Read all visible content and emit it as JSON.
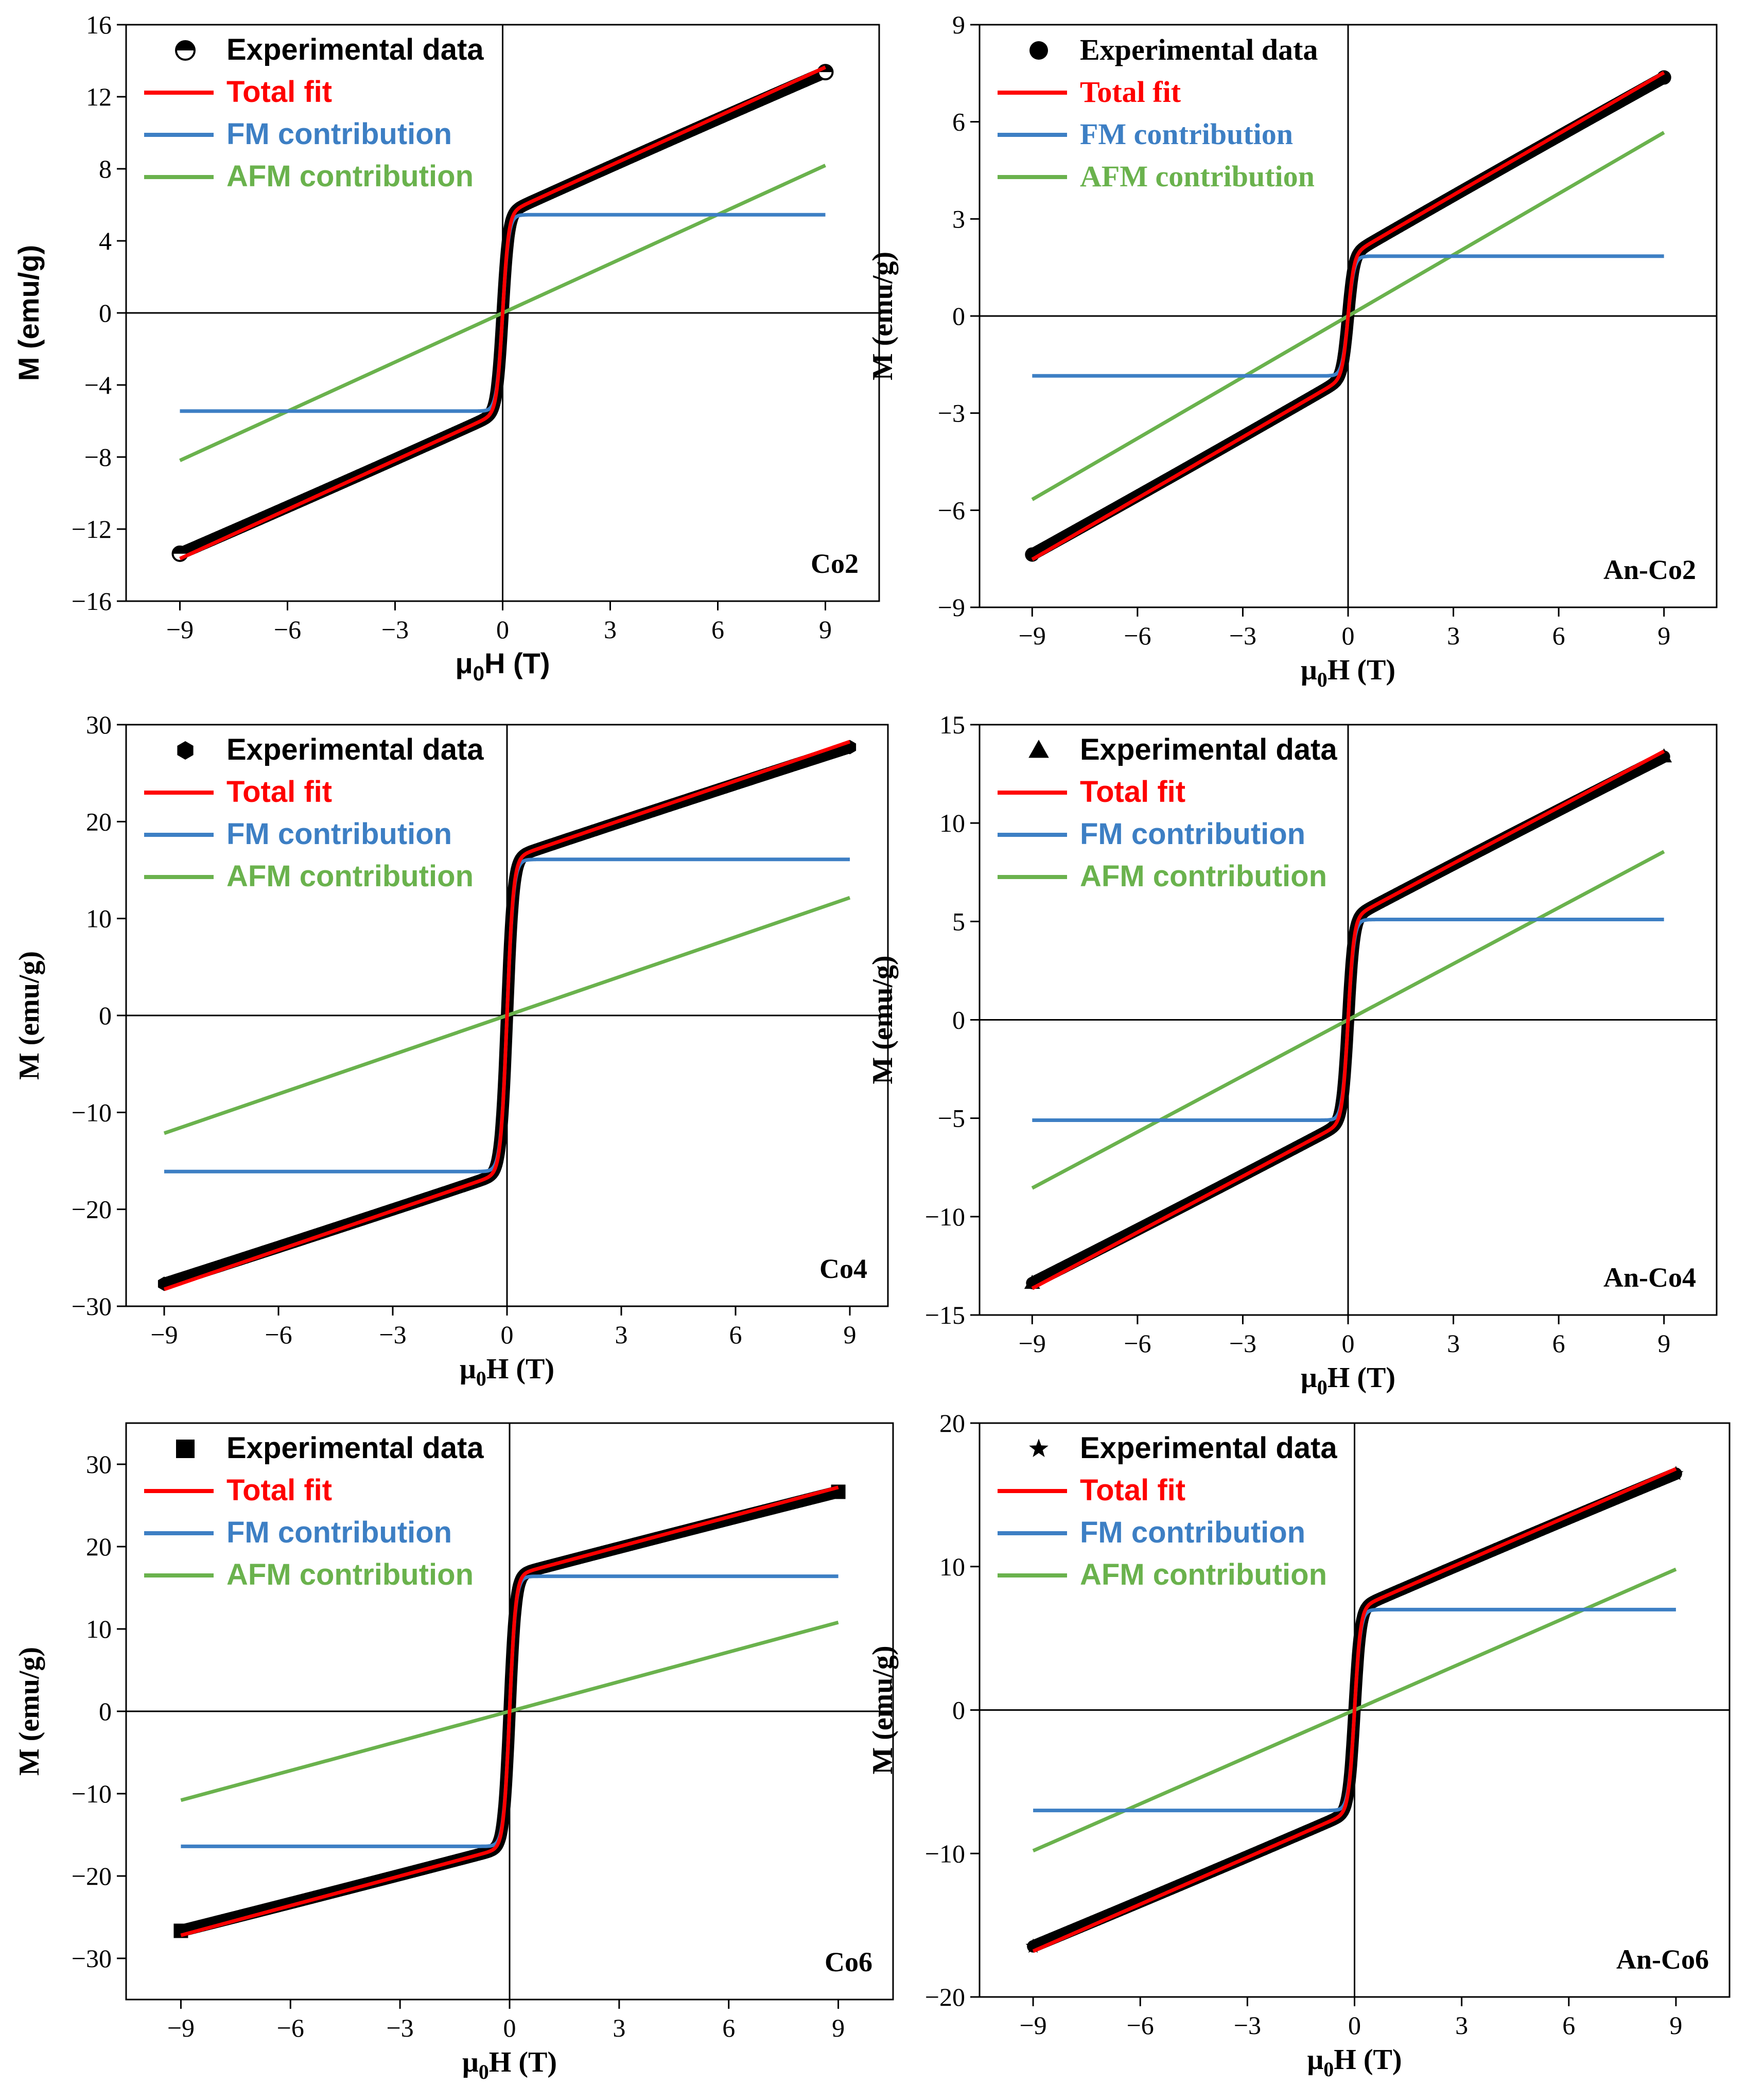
{
  "colors": {
    "experimental": "#000000",
    "total_fit": "#ff0000",
    "fm": "#3d7fc4",
    "afm": "#6ab24d"
  },
  "chart_data": [
    {
      "type": "line",
      "sample": "Co2",
      "xlabel_mu": "μ",
      "xlabel_sub": "0",
      "xlabel_rest": "H (T)",
      "ylabel": "M (emu/g)",
      "xlim": [
        -10.5,
        10.5
      ],
      "ylim": [
        -16,
        16
      ],
      "xticks": [
        "-9",
        "-6",
        "-3",
        "0",
        "3",
        "6",
        "9"
      ],
      "yticks": [
        "16",
        "12",
        "8",
        "4",
        "0",
        "-4",
        "-8",
        "-12",
        "-16"
      ],
      "ytick_vals": [
        16,
        12,
        8,
        4,
        0,
        -4,
        -8,
        -12,
        -16
      ],
      "legend_font": "sans",
      "legend": [
        "Experimental data",
        "Total fit",
        "FM contribution",
        "AFM contribution"
      ],
      "marker": "halfcircle",
      "Ms_fm": 5.45,
      "chi_afm": 0.91,
      "steep": 6
    },
    {
      "type": "line",
      "sample": "An-Co2",
      "xlabel_mu": "μ",
      "xlabel_sub": "0",
      "xlabel_rest": "H (T)",
      "ylabel": "M (emu/g)",
      "xlim": [
        -10.5,
        10.5
      ],
      "ylim": [
        -9,
        9
      ],
      "xticks": [
        "-9",
        "-6",
        "-3",
        "0",
        "3",
        "6",
        "9"
      ],
      "yticks": [
        "9",
        "6",
        "3",
        "0",
        "-3",
        "-6",
        "-9"
      ],
      "ytick_vals": [
        9,
        6,
        3,
        0,
        -3,
        -6,
        -9
      ],
      "legend_font": "serif",
      "legend": [
        "Experimental data",
        "Total fit",
        "FM contribution",
        "AFM contribution"
      ],
      "marker": "circle",
      "Ms_fm": 1.85,
      "chi_afm": 0.63,
      "steep": 6
    },
    {
      "type": "line",
      "sample": "Co4",
      "xlabel_mu": "μ",
      "xlabel_sub": "0",
      "xlabel_rest": "H (T)",
      "ylabel": "M (emu/g)",
      "xlim": [
        -10,
        10
      ],
      "ylim": [
        -30,
        30
      ],
      "xticks": [
        "-9",
        "-6",
        "-3",
        "0",
        "3",
        "6",
        "9"
      ],
      "yticks": [
        "30",
        "20",
        "10",
        "0",
        "-10",
        "-20",
        "-30"
      ],
      "ytick_vals": [
        30,
        20,
        10,
        0,
        -10,
        -20,
        -30
      ],
      "legend_font": "sans",
      "legend": [
        "Experimental data",
        "Total fit",
        "FM contribution",
        "AFM contribution"
      ],
      "marker": "hexagon",
      "Ms_fm": 16.1,
      "chi_afm": 1.35,
      "steep": 6
    },
    {
      "type": "line",
      "sample": "An-Co4",
      "xlabel_mu": "μ",
      "xlabel_sub": "0",
      "xlabel_rest": "H (T)",
      "ylabel": "M (emu/g)",
      "xlim": [
        -10.5,
        10.5
      ],
      "ylim": [
        -15,
        15
      ],
      "xticks": [
        "-9",
        "-6",
        "-3",
        "0",
        "3",
        "6",
        "9"
      ],
      "yticks": [
        "15",
        "10",
        "5",
        "0",
        "-5",
        "-10",
        "-15"
      ],
      "ytick_vals": [
        15,
        10,
        5,
        0,
        -5,
        -10,
        -15
      ],
      "legend_font": "sans",
      "legend": [
        "Experimental data",
        "Total fit",
        "FM contribution",
        "AFM contribution"
      ],
      "marker": "triangle",
      "Ms_fm": 5.1,
      "chi_afm": 0.95,
      "steep": 6
    },
    {
      "type": "line",
      "sample": "Co6",
      "xlabel_mu": "μ",
      "xlabel_sub": "0",
      "xlabel_rest": "H (T)",
      "ylabel": "M (emu/g)",
      "xlim": [
        -10.5,
        10.5
      ],
      "ylim": [
        -35,
        35
      ],
      "xticks": [
        "-9",
        "-6",
        "-3",
        "0",
        "3",
        "6",
        "9"
      ],
      "yticks": [
        "30",
        "20",
        "10",
        "0",
        "-10",
        "-20",
        "-30"
      ],
      "ytick_vals": [
        30,
        20,
        10,
        0,
        -10,
        -20,
        -30
      ],
      "legend_font": "sans",
      "legend": [
        "Experimental data",
        "Total fit",
        "FM contribution",
        "AFM contribution"
      ],
      "marker": "square",
      "Ms_fm": 16.4,
      "chi_afm": 1.2,
      "steep": 6
    },
    {
      "type": "line",
      "sample": "An-Co6",
      "xlabel_mu": "μ",
      "xlabel_sub": "0",
      "xlabel_rest": "H (T)",
      "ylabel": "M (emu/g)",
      "xlim": [
        -10.5,
        10.5
      ],
      "ylim": [
        -20,
        20
      ],
      "xticks": [
        "-9",
        "-6",
        "-3",
        "0",
        "3",
        "6",
        "9"
      ],
      "yticks": [
        "20",
        "10",
        "0",
        "-10",
        "-20"
      ],
      "ytick_vals": [
        20,
        10,
        0,
        -10,
        -20
      ],
      "legend_font": "sans",
      "legend": [
        "Experimental data",
        "Total fit",
        "FM contribution",
        "AFM contribution"
      ],
      "marker": "star",
      "Ms_fm": 7.0,
      "chi_afm": 1.09,
      "steep": 6
    }
  ]
}
